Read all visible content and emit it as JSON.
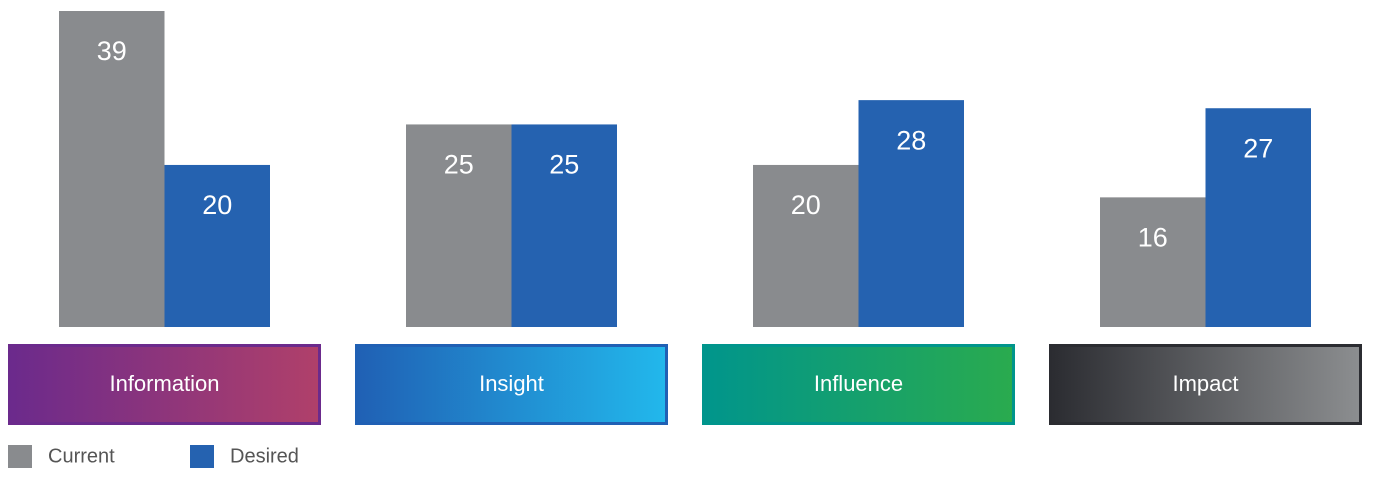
{
  "chart_data": {
    "type": "bar",
    "categories": [
      "Information",
      "Insight",
      "Influence",
      "Impact"
    ],
    "category_colors": [
      [
        "#6b2a8c",
        "#b0406a"
      ],
      [
        "#2060b4",
        "#22b8ec"
      ],
      [
        "#00958c",
        "#2aab4e"
      ],
      [
        "#2b2c31",
        "#8c8e90"
      ]
    ],
    "series": [
      {
        "name": "Current",
        "color": "#898b8e",
        "values": [
          39,
          25,
          20,
          16
        ]
      },
      {
        "name": "Desired",
        "color": "#2562b0",
        "values": [
          20,
          25,
          28,
          27
        ]
      }
    ],
    "legend": "bottom-left"
  }
}
